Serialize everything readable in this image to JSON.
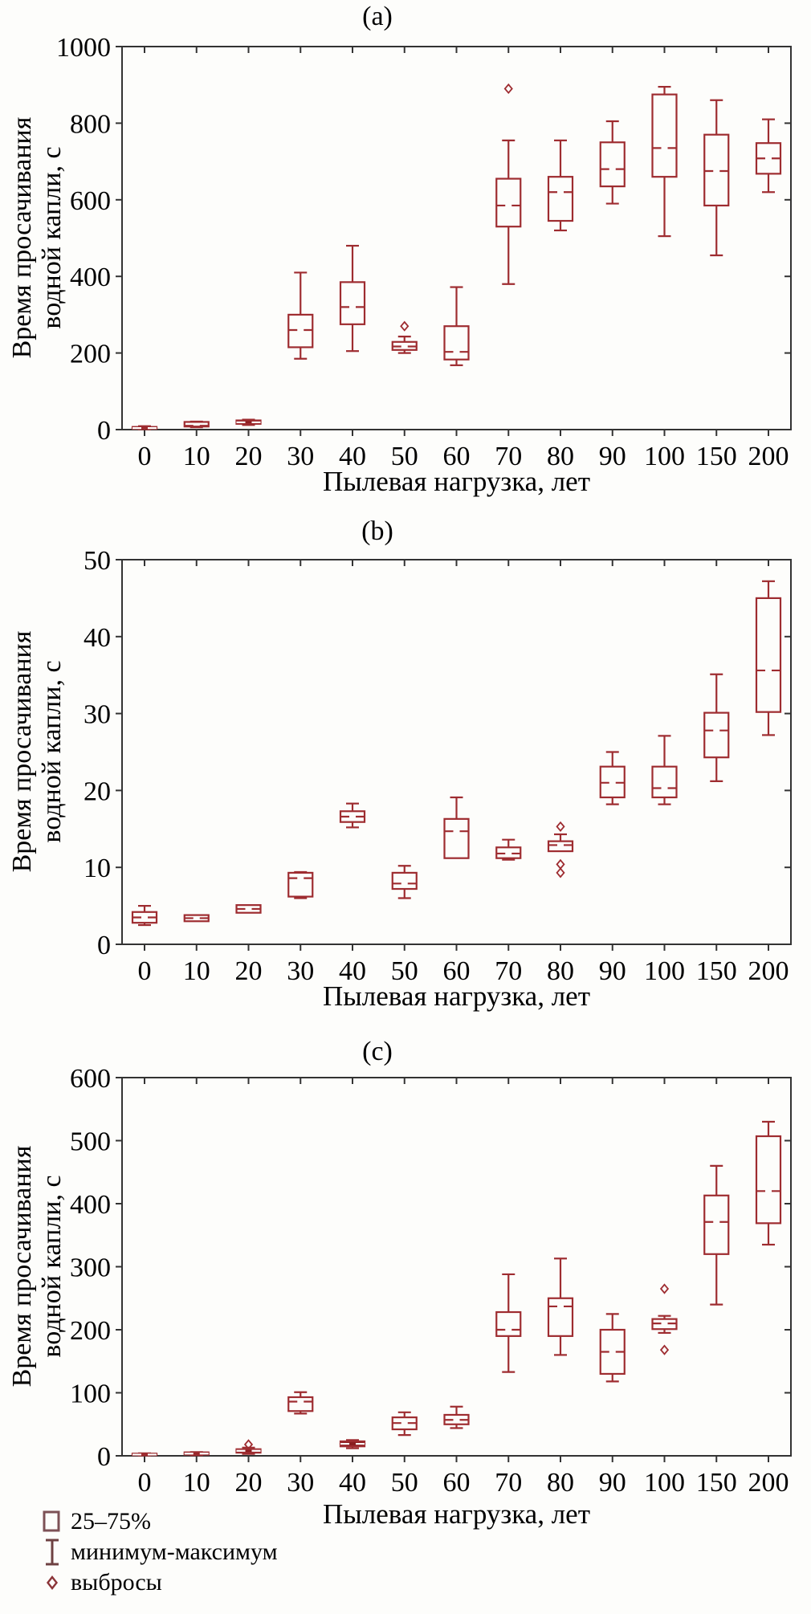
{
  "chart_data": [
    {
      "type": "boxplot",
      "panel_label": "(a)",
      "ylabel_lines": [
        "Время просачивания",
        "водной капли, с"
      ],
      "xlabel": "Пылевая нагрузка, лет",
      "ylim": [
        0,
        1000
      ],
      "ytick_step": 200,
      "grid": false,
      "categories": [
        "0",
        "10",
        "20",
        "30",
        "40",
        "50",
        "60",
        "70",
        "80",
        "90",
        "100",
        "150",
        "200"
      ],
      "boxes": [
        {
          "min": 1,
          "q1": 2,
          "med": 4,
          "q3": 7,
          "max": 9,
          "outliers": [],
          "filled": true
        },
        {
          "min": 6,
          "q1": 8,
          "med": 10,
          "q3": 20,
          "max": 21,
          "outliers": [],
          "filled": false
        },
        {
          "min": 12,
          "q1": 15,
          "med": 19,
          "q3": 24,
          "max": 26,
          "outliers": [],
          "filled": true
        },
        {
          "min": 185,
          "q1": 215,
          "med": 260,
          "q3": 300,
          "max": 410,
          "outliers": [],
          "filled": false
        },
        {
          "min": 205,
          "q1": 275,
          "med": 320,
          "q3": 385,
          "max": 480,
          "outliers": [],
          "filled": false
        },
        {
          "min": 200,
          "q1": 208,
          "med": 217,
          "q3": 229,
          "max": 243,
          "outliers": [
            270
          ],
          "filled": false
        },
        {
          "min": 168,
          "q1": 183,
          "med": 203,
          "q3": 270,
          "max": 372,
          "outliers": [],
          "filled": false
        },
        {
          "min": 380,
          "q1": 530,
          "med": 585,
          "q3": 655,
          "max": 755,
          "outliers": [
            890
          ],
          "filled": false
        },
        {
          "min": 520,
          "q1": 545,
          "med": 620,
          "q3": 660,
          "max": 755,
          "outliers": [],
          "filled": false
        },
        {
          "min": 590,
          "q1": 635,
          "med": 680,
          "q3": 750,
          "max": 805,
          "outliers": [],
          "filled": false
        },
        {
          "min": 505,
          "q1": 660,
          "med": 735,
          "q3": 875,
          "max": 895,
          "outliers": [],
          "filled": false
        },
        {
          "min": 455,
          "q1": 585,
          "med": 675,
          "q3": 770,
          "max": 860,
          "outliers": [],
          "filled": false
        },
        {
          "min": 620,
          "q1": 668,
          "med": 708,
          "q3": 748,
          "max": 810,
          "outliers": [],
          "filled": false
        }
      ]
    },
    {
      "type": "boxplot",
      "panel_label": "(b)",
      "ylabel_lines": [
        "Время просачивания",
        "водной капли, с"
      ],
      "xlabel": "Пылевая нагрузка, лет",
      "ylim": [
        0,
        50
      ],
      "ytick_step": 10,
      "grid": false,
      "categories": [
        "0",
        "10",
        "20",
        "30",
        "40",
        "50",
        "60",
        "70",
        "80",
        "90",
        "100",
        "150",
        "200"
      ],
      "boxes": [
        {
          "min": 2.5,
          "q1": 2.8,
          "med": 3.5,
          "q3": 4.2,
          "max": 5.0,
          "outliers": [],
          "filled": false
        },
        {
          "min": 3.0,
          "q1": 3.0,
          "med": 3.4,
          "q3": 3.8,
          "max": 3.8,
          "outliers": [],
          "filled": false
        },
        {
          "min": 4.1,
          "q1": 4.1,
          "med": 4.6,
          "q3": 5.1,
          "max": 5.1,
          "outliers": [],
          "filled": false
        },
        {
          "min": 6.0,
          "q1": 6.2,
          "med": 8.6,
          "q3": 9.3,
          "max": 9.4,
          "outliers": [],
          "filled": false
        },
        {
          "min": 15.2,
          "q1": 15.9,
          "med": 16.6,
          "q3": 17.3,
          "max": 18.3,
          "outliers": [],
          "filled": false
        },
        {
          "min": 6.0,
          "q1": 7.2,
          "med": 7.9,
          "q3": 9.3,
          "max": 10.2,
          "outliers": [],
          "filled": false
        },
        {
          "min": 11.2,
          "q1": 11.2,
          "med": 14.7,
          "q3": 16.3,
          "max": 19.1,
          "outliers": [],
          "filled": false
        },
        {
          "min": 11.0,
          "q1": 11.2,
          "med": 11.8,
          "q3": 12.6,
          "max": 13.6,
          "outliers": [],
          "filled": false
        },
        {
          "min": 12.1,
          "q1": 12.1,
          "med": 12.9,
          "q3": 13.4,
          "max": 14.3,
          "outliers": [
            15.3,
            10.4,
            9.3
          ],
          "filled": false
        },
        {
          "min": 18.2,
          "q1": 19.1,
          "med": 21.0,
          "q3": 23.1,
          "max": 25.0,
          "outliers": [],
          "filled": false
        },
        {
          "min": 18.2,
          "q1": 19.1,
          "med": 20.3,
          "q3": 23.1,
          "max": 27.1,
          "outliers": [],
          "filled": false
        },
        {
          "min": 21.2,
          "q1": 24.3,
          "med": 27.8,
          "q3": 30.1,
          "max": 35.1,
          "outliers": [],
          "filled": false
        },
        {
          "min": 27.2,
          "q1": 30.2,
          "med": 35.6,
          "q3": 45.0,
          "max": 47.2,
          "outliers": [],
          "filled": false
        }
      ]
    },
    {
      "type": "boxplot",
      "panel_label": "(c)",
      "ylabel_lines": [
        "Время просачивания",
        "водной капли, с"
      ],
      "xlabel": "Пылевая нагрузка, лет",
      "ylim": [
        0,
        600
      ],
      "ytick_step": 100,
      "grid": false,
      "categories": [
        "0",
        "10",
        "20",
        "30",
        "40",
        "50",
        "60",
        "70",
        "80",
        "90",
        "100",
        "150",
        "200"
      ],
      "boxes": [
        {
          "min": 0.5,
          "q1": 1,
          "med": 2,
          "q3": 3.5,
          "max": 4,
          "outliers": [],
          "filled": true
        },
        {
          "min": 1,
          "q1": 2,
          "med": 3.5,
          "q3": 5.5,
          "max": 6,
          "outliers": [],
          "filled": true
        },
        {
          "min": 3,
          "q1": 5,
          "med": 8,
          "q3": 10.5,
          "max": 13,
          "outliers": [
            18
          ],
          "filled": true
        },
        {
          "min": 67,
          "q1": 71,
          "med": 86,
          "q3": 93,
          "max": 101,
          "outliers": [],
          "filled": false
        },
        {
          "min": 12,
          "q1": 15,
          "med": 19,
          "q3": 23,
          "max": 25,
          "outliers": [],
          "filled": true
        },
        {
          "min": 33,
          "q1": 42,
          "med": 52,
          "q3": 61,
          "max": 69,
          "outliers": [],
          "filled": false
        },
        {
          "min": 44,
          "q1": 50,
          "med": 57,
          "q3": 65,
          "max": 78,
          "outliers": [],
          "filled": false
        },
        {
          "min": 133,
          "q1": 190,
          "med": 200,
          "q3": 228,
          "max": 288,
          "outliers": [],
          "filled": false
        },
        {
          "min": 160,
          "q1": 190,
          "med": 237,
          "q3": 250,
          "max": 313,
          "outliers": [],
          "filled": false
        },
        {
          "min": 118,
          "q1": 130,
          "med": 165,
          "q3": 200,
          "max": 225,
          "outliers": [],
          "filled": false
        },
        {
          "min": 195,
          "q1": 201,
          "med": 210,
          "q3": 217,
          "max": 222,
          "outliers": [
            265,
            168
          ],
          "filled": false
        },
        {
          "min": 240,
          "q1": 320,
          "med": 371,
          "q3": 413,
          "max": 460,
          "outliers": [],
          "filled": false
        },
        {
          "min": 335,
          "q1": 369,
          "med": 420,
          "q3": 507,
          "max": 530,
          "outliers": [],
          "filled": false
        }
      ]
    }
  ],
  "legend": {
    "items": [
      {
        "icon": "box",
        "label": "25–75%"
      },
      {
        "icon": "min-max-whisker",
        "label": "минимум-максимум"
      },
      {
        "icon": "diamond",
        "label": "выбросы"
      }
    ]
  },
  "colors": {
    "box_stroke": "#9e2c30",
    "box_fill_solid": "#8a1e20",
    "axis": "#333333",
    "text": "#000000",
    "legend_box_icon": "#7d5156",
    "legend_whisker_icon": "#6e4142",
    "legend_diamond_icon": "#8b3539"
  }
}
